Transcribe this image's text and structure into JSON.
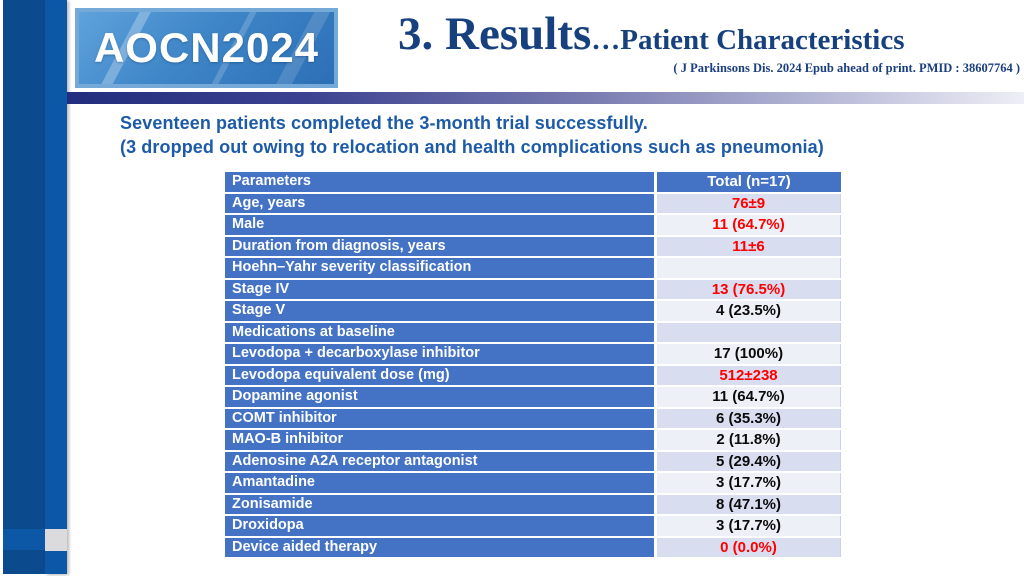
{
  "slide": {
    "logo_text": "AOCN2024",
    "title_main": "3. Results",
    "title_ellipsis": "…",
    "title_sub": "Patient Characteristics",
    "citation": "( J Parkinsons Dis. 2024 Epub ahead of print. PMID : 38607764 )",
    "intro_line1": "Seventeen patients completed the 3-month trial successfully.",
    "intro_line2": "(3 dropped out owing to relocation and health complications such as pneumonia)"
  },
  "table": {
    "header": {
      "parameter": "Parameters",
      "value": "Total (n=17)"
    },
    "rows": [
      {
        "parameter": "Age, years",
        "value": "76±9",
        "value_color": "red",
        "indent": 0,
        "band": "dark"
      },
      {
        "parameter": "Male",
        "value": "11 (64.7%)",
        "value_color": "red",
        "indent": 0,
        "band": "light"
      },
      {
        "parameter": "Duration from diagnosis, years",
        "value": "11±6",
        "value_color": "red",
        "indent": 0,
        "band": "dark"
      },
      {
        "parameter": "Hoehn–Yahr severity classification",
        "value": "",
        "value_color": "black",
        "indent": 0,
        "band": "light"
      },
      {
        "parameter": "Stage IV",
        "value": "13 (76.5%)",
        "value_color": "red",
        "indent": 1,
        "band": "dark"
      },
      {
        "parameter": "Stage V",
        "value": "4 (23.5%)",
        "value_color": "black",
        "indent": 1,
        "band": "light"
      },
      {
        "parameter": "Medications at baseline",
        "value": "",
        "value_color": "black",
        "indent": 0,
        "band": "dark"
      },
      {
        "parameter": "Levodopa + decarboxylase inhibitor",
        "value": "17 (100%)",
        "value_color": "black",
        "indent": 1,
        "band": "light"
      },
      {
        "parameter": "Levodopa equivalent dose (mg)",
        "value": "512±238",
        "value_color": "red",
        "indent": 2,
        "band": "dark"
      },
      {
        "parameter": "Dopamine agonist",
        "value": "11 (64.7%)",
        "value_color": "black",
        "indent": 1,
        "band": "light"
      },
      {
        "parameter": "COMT inhibitor",
        "value": "6 (35.3%)",
        "value_color": "black",
        "indent": 1,
        "band": "dark"
      },
      {
        "parameter": "MAO-B inhibitor",
        "value": "2 (11.8%)",
        "value_color": "black",
        "indent": 1,
        "band": "light"
      },
      {
        "parameter": "Adenosine A2A receptor antagonist",
        "value": "5 (29.4%)",
        "value_color": "black",
        "indent": 1,
        "band": "dark"
      },
      {
        "parameter": "Amantadine",
        "value": "3 (17.7%)",
        "value_color": "black",
        "indent": 1,
        "band": "light"
      },
      {
        "parameter": "Zonisamide",
        "value": "8 (47.1%)",
        "value_color": "black",
        "indent": 1,
        "band": "dark"
      },
      {
        "parameter": "Droxidopa",
        "value": "3 (17.7%)",
        "value_color": "black",
        "indent": 1,
        "band": "light"
      },
      {
        "parameter": "Device aided therapy",
        "value": "0 (0.0%)",
        "value_color": "red",
        "indent": 0,
        "band": "dark"
      }
    ]
  },
  "colors": {
    "accent_dark_bar": "#0b4a8c",
    "accent_mid_bar": "#0d57a7",
    "accent_gray_square": "#dbdbdd",
    "title_navy": "#17417e",
    "intro_blue": "#1d5ba9",
    "table_label_blue": "#4472c4",
    "value_band_dark": "#d9ddf0",
    "value_band_light": "#eef0f8",
    "value_red": "#ff0000",
    "header_rule_gradient_start": "#222d7d",
    "header_rule_gradient_end": "#eeeef6"
  }
}
